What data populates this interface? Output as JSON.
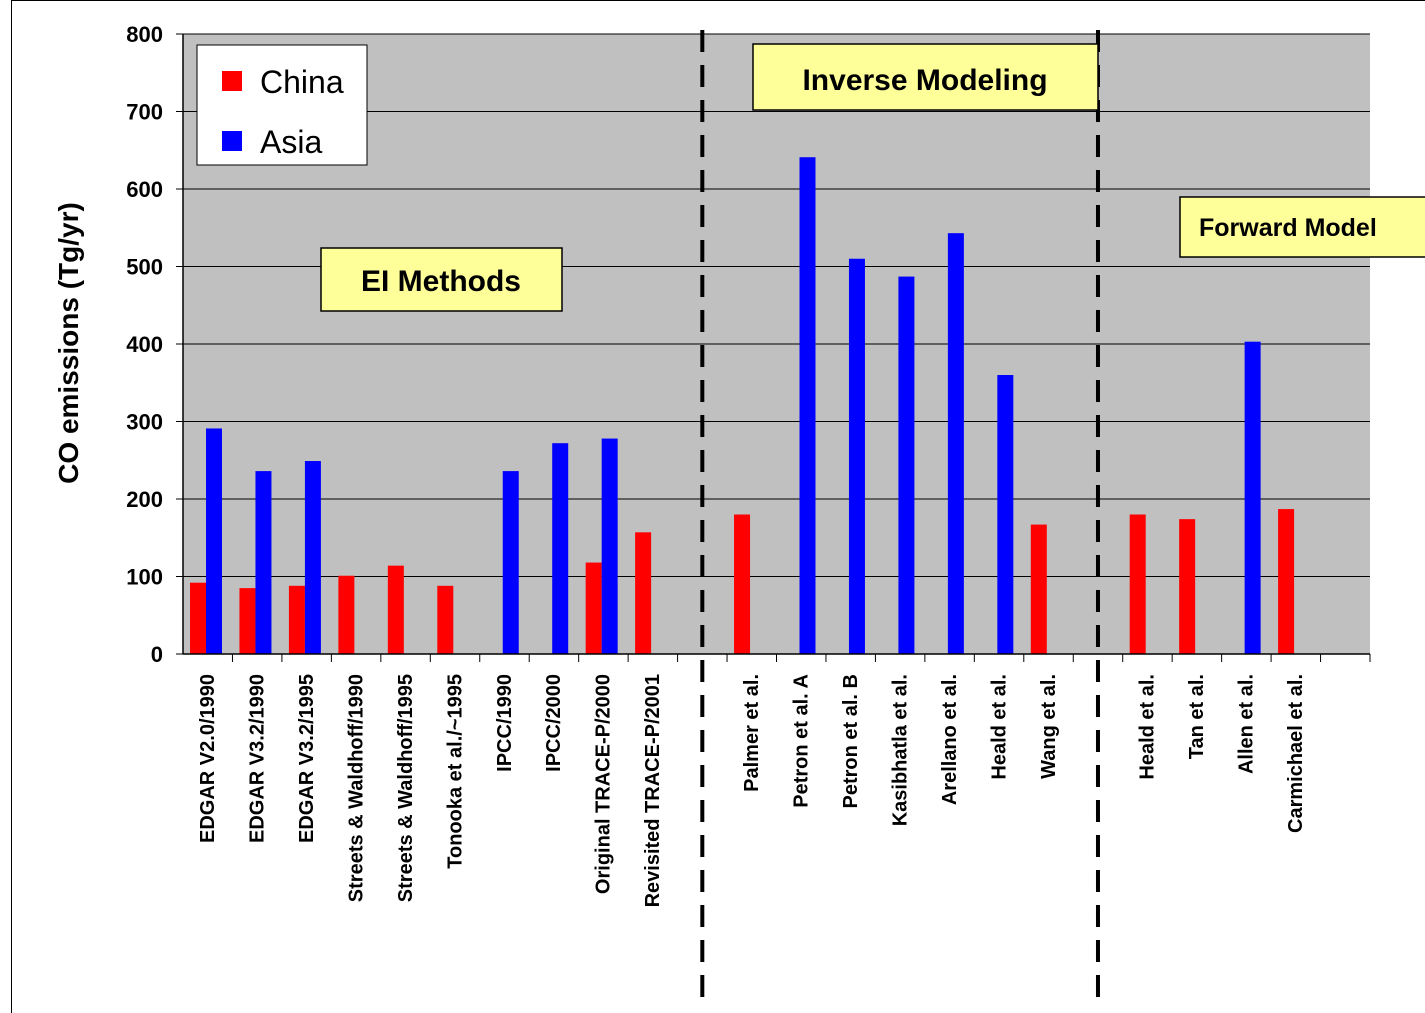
{
  "chart_data": {
    "type": "bar",
    "ylabel": "CO emissions (Tg/yr)",
    "xlabel": "",
    "ylim": [
      0,
      800
    ],
    "yticks": [
      0,
      100,
      200,
      300,
      400,
      500,
      600,
      700,
      800
    ],
    "grid": true,
    "legend_position": "top-left",
    "slots": 24,
    "categories": [
      "EDGAR V2.0/1990",
      "EDGAR V3.2/1990",
      "EDGAR V3.2/1995",
      "Streets & Waldhoff/1990",
      "Streets & Waldhoff/1995",
      "Tonooka et al./~1995",
      "IPCC/1990",
      "IPCC/2000",
      "Original TRACE-P/2000",
      "Revisited TRACE-P/2001",
      "",
      "Palmer et al.",
      "Petron et al. A",
      "Petron et al. B",
      "Kasibhatla et al.",
      "Arellano et al.",
      "Heald et al.",
      "Wang et al.",
      "",
      "Heald et al.",
      "Tan et al.",
      "Allen et al.",
      "Carmichael et al."
    ],
    "series": [
      {
        "name": "China",
        "color": "#ff0000",
        "values": [
          92,
          85,
          88,
          101,
          114,
          88,
          null,
          null,
          118,
          157,
          null,
          180,
          null,
          null,
          null,
          null,
          null,
          167,
          null,
          180,
          174,
          null,
          187
        ]
      },
      {
        "name": "Asia",
        "color": "#0000ff",
        "values": [
          291,
          236,
          249,
          null,
          null,
          null,
          236,
          272,
          278,
          null,
          null,
          null,
          641,
          510,
          487,
          543,
          360,
          null,
          null,
          null,
          null,
          403,
          null
        ]
      }
    ],
    "annotations": [
      "EI Methods",
      "Inverse Modeling",
      "Forward Model"
    ],
    "plot_background": "#c0c0c0",
    "annotation_background": "#ffff99"
  }
}
